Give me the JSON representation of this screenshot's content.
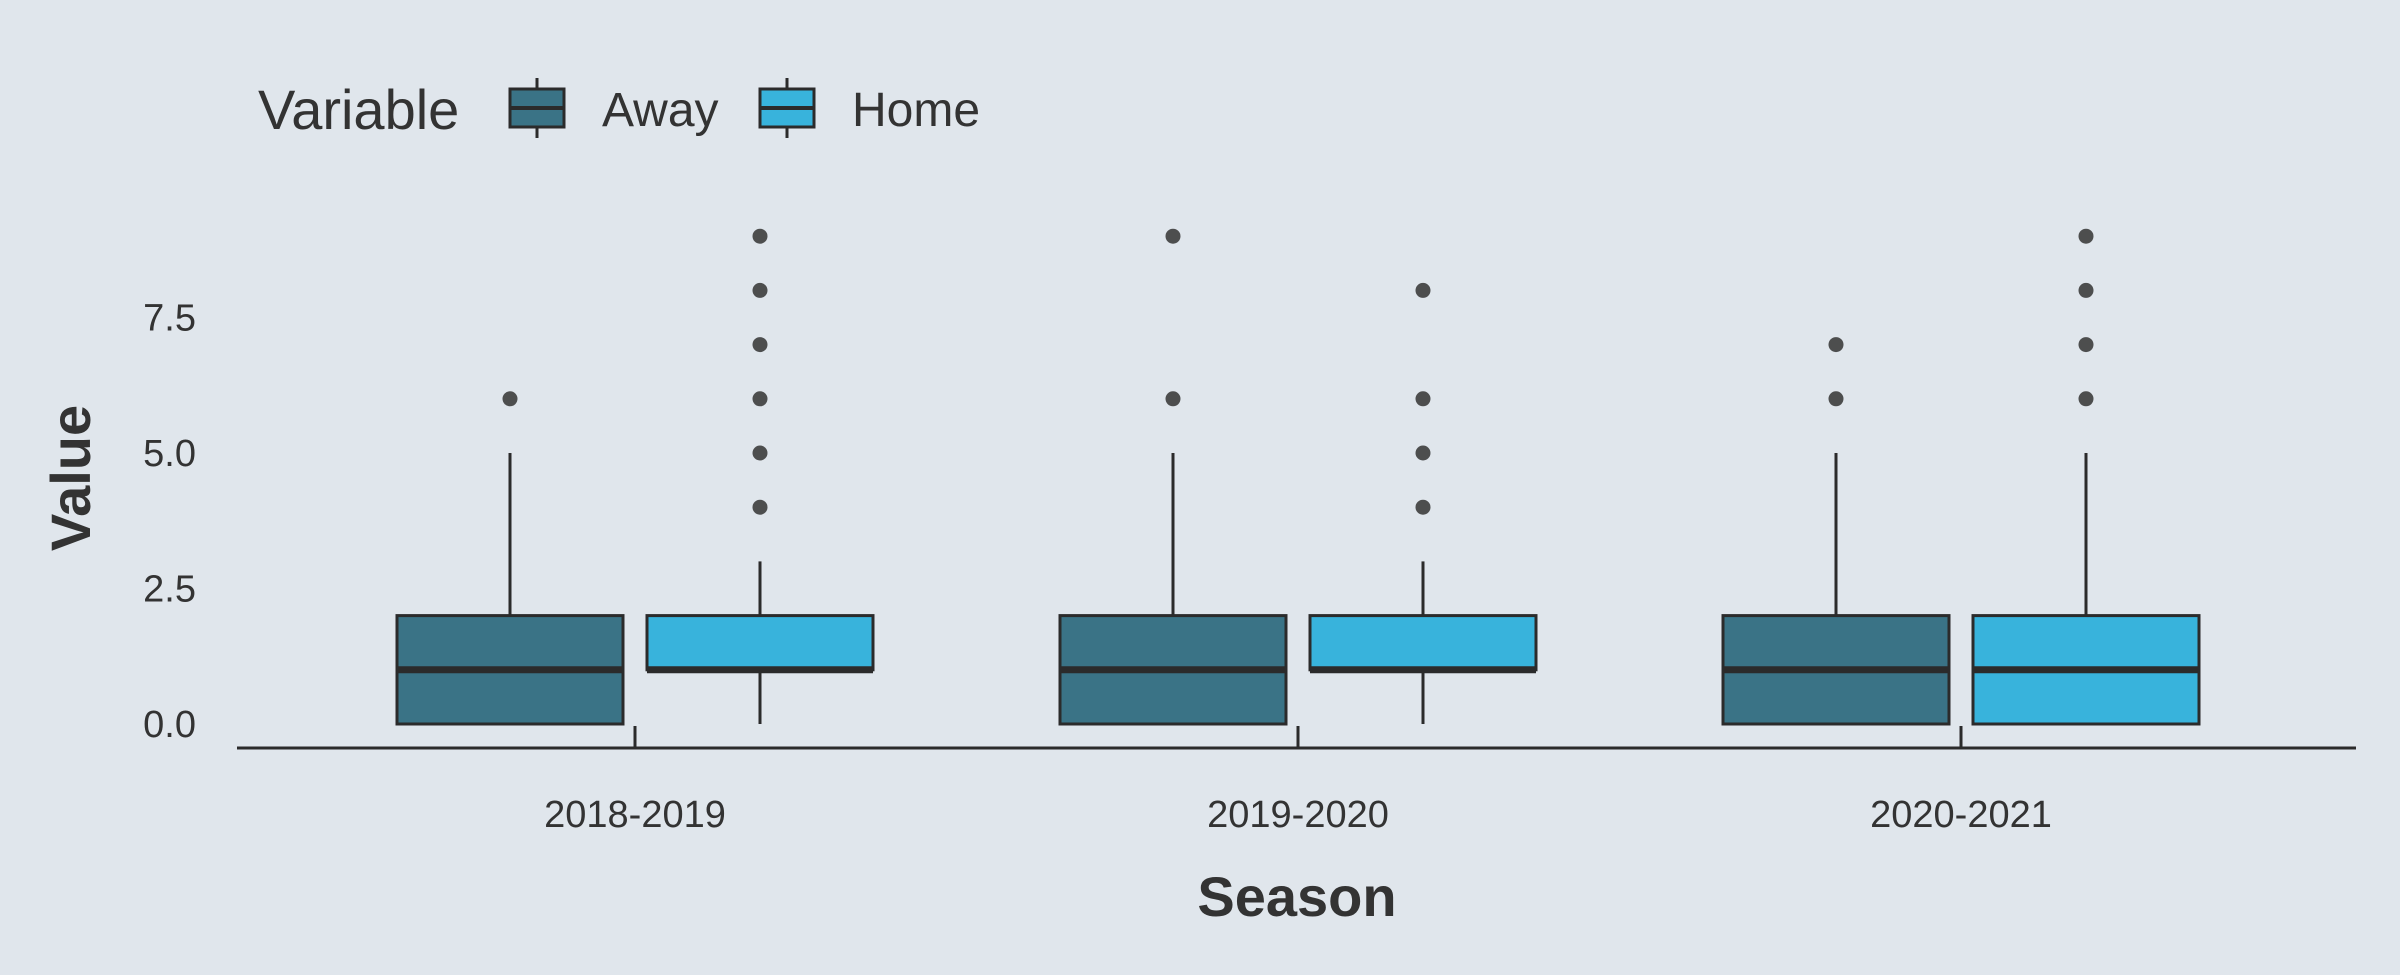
{
  "chart_data": {
    "type": "boxplot",
    "title": "",
    "xlabel": "Season",
    "ylabel": "Value",
    "ylim": [
      -0.45,
      9.5
    ],
    "yticks": [
      0.0,
      2.5,
      5.0,
      7.5
    ],
    "ytick_labels": [
      "0.0",
      "2.5",
      "5.0",
      "7.5"
    ],
    "categories": [
      "2018-2019",
      "2019-2020",
      "2020-2021"
    ],
    "grid": false,
    "legend": {
      "title": "Variable",
      "position": "top-left"
    },
    "series": [
      {
        "name": "Away",
        "color": "#3a7386",
        "boxes": [
          {
            "min": 0,
            "q1": 0,
            "median": 1,
            "q3": 2,
            "max": 5,
            "outliers": [
              6
            ]
          },
          {
            "min": 0,
            "q1": 0,
            "median": 1,
            "q3": 2,
            "max": 5,
            "outliers": [
              6,
              9
            ]
          },
          {
            "min": 0,
            "q1": 0,
            "median": 1,
            "q3": 2,
            "max": 5,
            "outliers": [
              6,
              7
            ]
          }
        ]
      },
      {
        "name": "Home",
        "color": "#38b3dc",
        "boxes": [
          {
            "min": 0,
            "q1": 1,
            "median": 1,
            "q3": 2,
            "max": 3,
            "outliers": [
              4,
              5,
              6,
              7,
              8,
              9
            ]
          },
          {
            "min": 0,
            "q1": 1,
            "median": 1,
            "q3": 2,
            "max": 3,
            "outliers": [
              4,
              5,
              6,
              8
            ]
          },
          {
            "min": 0,
            "q1": 0,
            "median": 1,
            "q3": 2,
            "max": 5,
            "outliers": [
              6,
              7,
              8,
              9
            ]
          }
        ]
      }
    ]
  }
}
